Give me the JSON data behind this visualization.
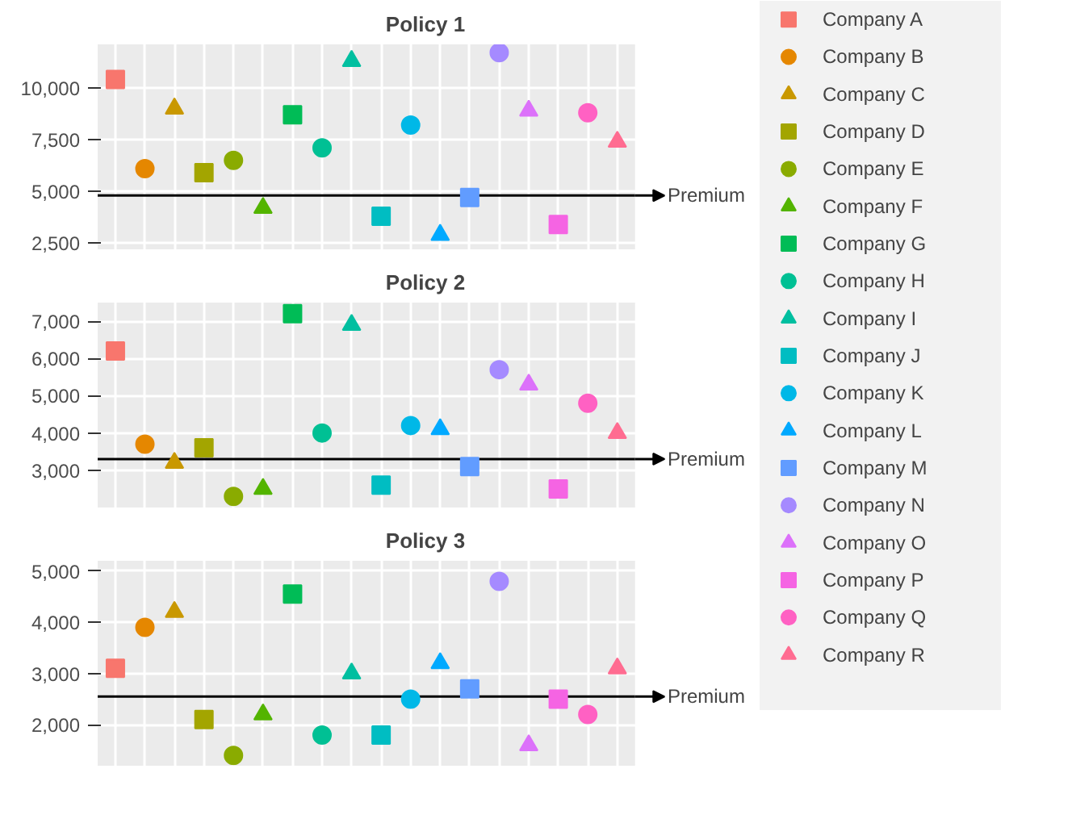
{
  "chart_data": [
    {
      "type": "scatter",
      "title": "Policy 1",
      "categories": [
        null,
        null,
        null,
        null,
        null,
        null,
        null,
        null,
        null,
        null,
        null,
        null,
        null,
        null,
        null,
        null,
        null,
        null
      ],
      "ylim": [
        2200,
        12100
      ],
      "yticks": [
        {
          "value": 2500,
          "label": "2,500"
        },
        {
          "value": 5000,
          "label": "5,000"
        },
        {
          "value": 7500,
          "label": "7,500"
        },
        {
          "value": 10000,
          "label": "10,000"
        }
      ],
      "grid": true,
      "legend": "right",
      "ref_lines": [
        {
          "axis": "y",
          "value": 4800,
          "label": "Premium"
        }
      ],
      "series": [
        {
          "name": "Company A",
          "color": "#F8766D",
          "marker": "square",
          "values": [
            10400,
            null,
            null,
            null,
            null,
            null,
            null,
            null,
            null,
            null,
            null,
            null,
            null,
            null,
            null,
            null,
            null,
            null
          ]
        },
        {
          "name": "Company B",
          "color": "#E58700",
          "marker": "circle",
          "values": [
            null,
            6100,
            null,
            null,
            null,
            null,
            null,
            null,
            null,
            null,
            null,
            null,
            null,
            null,
            null,
            null,
            null,
            null
          ]
        },
        {
          "name": "Company C",
          "color": "#C99800",
          "marker": "triangle",
          "values": [
            null,
            null,
            9000,
            null,
            null,
            null,
            null,
            null,
            null,
            null,
            null,
            null,
            null,
            null,
            null,
            null,
            null,
            null
          ]
        },
        {
          "name": "Company D",
          "color": "#A3A500",
          "marker": "square",
          "values": [
            null,
            null,
            null,
            5900,
            null,
            null,
            null,
            null,
            null,
            null,
            null,
            null,
            null,
            null,
            null,
            null,
            null,
            null
          ]
        },
        {
          "name": "Company E",
          "color": "#8AAB00",
          "marker": "circle",
          "values": [
            null,
            null,
            null,
            null,
            6500,
            null,
            null,
            null,
            null,
            null,
            null,
            null,
            null,
            null,
            null,
            null,
            null,
            null
          ]
        },
        {
          "name": "Company F",
          "color": "#53B400",
          "marker": "triangle",
          "values": [
            null,
            null,
            null,
            null,
            null,
            4200,
            null,
            null,
            null,
            null,
            null,
            null,
            null,
            null,
            null,
            null,
            null,
            null
          ]
        },
        {
          "name": "Company G",
          "color": "#00BC56",
          "marker": "square",
          "values": [
            null,
            null,
            null,
            null,
            null,
            null,
            8700,
            null,
            null,
            null,
            null,
            null,
            null,
            null,
            null,
            null,
            null,
            null
          ]
        },
        {
          "name": "Company H",
          "color": "#00C094",
          "marker": "circle",
          "values": [
            null,
            null,
            null,
            null,
            null,
            null,
            null,
            7100,
            null,
            null,
            null,
            null,
            null,
            null,
            null,
            null,
            null,
            null
          ]
        },
        {
          "name": "Company I",
          "color": "#00BFA0",
          "marker": "triangle",
          "values": [
            null,
            null,
            null,
            null,
            null,
            null,
            null,
            null,
            11300,
            null,
            null,
            null,
            null,
            null,
            null,
            null,
            null,
            null
          ]
        },
        {
          "name": "Company J",
          "color": "#00BDC2",
          "marker": "square",
          "values": [
            null,
            null,
            null,
            null,
            null,
            null,
            null,
            null,
            null,
            3800,
            null,
            null,
            null,
            null,
            null,
            null,
            null,
            null
          ]
        },
        {
          "name": "Company K",
          "color": "#00B8E7",
          "marker": "circle",
          "values": [
            null,
            null,
            null,
            null,
            null,
            null,
            null,
            null,
            null,
            null,
            8200,
            null,
            null,
            null,
            null,
            null,
            null,
            null
          ]
        },
        {
          "name": "Company L",
          "color": "#00A9FF",
          "marker": "triangle",
          "values": [
            null,
            null,
            null,
            null,
            null,
            null,
            null,
            null,
            null,
            null,
            null,
            2900,
            null,
            null,
            null,
            null,
            null,
            null
          ]
        },
        {
          "name": "Company M",
          "color": "#619CFF",
          "marker": "square",
          "values": [
            null,
            null,
            null,
            null,
            null,
            null,
            null,
            null,
            null,
            null,
            null,
            null,
            4700,
            null,
            null,
            null,
            null,
            null
          ]
        },
        {
          "name": "Company N",
          "color": "#A58AFF",
          "marker": "circle",
          "values": [
            null,
            null,
            null,
            null,
            null,
            null,
            null,
            null,
            null,
            null,
            null,
            null,
            null,
            11700,
            null,
            null,
            null,
            null
          ]
        },
        {
          "name": "Company O",
          "color": "#DC71FA",
          "marker": "triangle",
          "values": [
            null,
            null,
            null,
            null,
            null,
            null,
            null,
            null,
            null,
            null,
            null,
            null,
            null,
            null,
            8900,
            null,
            null,
            null
          ]
        },
        {
          "name": "Company P",
          "color": "#F564E3",
          "marker": "square",
          "values": [
            null,
            null,
            null,
            null,
            null,
            null,
            null,
            null,
            null,
            null,
            null,
            null,
            null,
            null,
            null,
            3400,
            null,
            null
          ]
        },
        {
          "name": "Company Q",
          "color": "#FF61C3",
          "marker": "circle",
          "values": [
            null,
            null,
            null,
            null,
            null,
            null,
            null,
            null,
            null,
            null,
            null,
            null,
            null,
            null,
            null,
            null,
            8800,
            null
          ]
        },
        {
          "name": "Company R",
          "color": "#FF6C91",
          "marker": "triangle",
          "values": [
            null,
            null,
            null,
            null,
            null,
            null,
            null,
            null,
            null,
            null,
            null,
            null,
            null,
            null,
            null,
            null,
            null,
            7400
          ]
        }
      ]
    },
    {
      "type": "scatter",
      "title": "Policy 2",
      "categories": [
        null,
        null,
        null,
        null,
        null,
        null,
        null,
        null,
        null,
        null,
        null,
        null,
        null,
        null,
        null,
        null,
        null,
        null
      ],
      "ylim": [
        2000,
        7500
      ],
      "yticks": [
        {
          "value": 3000,
          "label": "3,000"
        },
        {
          "value": 4000,
          "label": "4,000"
        },
        {
          "value": 5000,
          "label": "5,000"
        },
        {
          "value": 6000,
          "label": "6,000"
        },
        {
          "value": 7000,
          "label": "7,000"
        }
      ],
      "grid": true,
      "ref_lines": [
        {
          "axis": "y",
          "value": 3300,
          "label": "Premium"
        }
      ],
      "series": [
        {
          "color": "#F8766D",
          "marker": "square",
          "values": [
            6200,
            null,
            null,
            null,
            null,
            null,
            null,
            null,
            null,
            null,
            null,
            null,
            null,
            null,
            null,
            null,
            null,
            null
          ]
        },
        {
          "color": "#E58700",
          "marker": "circle",
          "values": [
            null,
            3700,
            null,
            null,
            null,
            null,
            null,
            null,
            null,
            null,
            null,
            null,
            null,
            null,
            null,
            null,
            null,
            null
          ]
        },
        {
          "color": "#C99800",
          "marker": "triangle",
          "values": [
            null,
            null,
            3200,
            null,
            null,
            null,
            null,
            null,
            null,
            null,
            null,
            null,
            null,
            null,
            null,
            null,
            null,
            null
          ]
        },
        {
          "color": "#A3A500",
          "marker": "square",
          "values": [
            null,
            null,
            null,
            3600,
            null,
            null,
            null,
            null,
            null,
            null,
            null,
            null,
            null,
            null,
            null,
            null,
            null,
            null
          ]
        },
        {
          "color": "#8AAB00",
          "marker": "circle",
          "values": [
            null,
            null,
            null,
            null,
            2300,
            null,
            null,
            null,
            null,
            null,
            null,
            null,
            null,
            null,
            null,
            null,
            null,
            null
          ]
        },
        {
          "color": "#53B400",
          "marker": "triangle",
          "values": [
            null,
            null,
            null,
            null,
            null,
            2500,
            null,
            null,
            null,
            null,
            null,
            null,
            null,
            null,
            null,
            null,
            null,
            null
          ]
        },
        {
          "color": "#00BC56",
          "marker": "square",
          "values": [
            null,
            null,
            null,
            null,
            null,
            null,
            7200,
            null,
            null,
            null,
            null,
            null,
            null,
            null,
            null,
            null,
            null,
            null
          ]
        },
        {
          "color": "#00C094",
          "marker": "circle",
          "values": [
            null,
            null,
            null,
            null,
            null,
            null,
            null,
            4000,
            null,
            null,
            null,
            null,
            null,
            null,
            null,
            null,
            null,
            null
          ]
        },
        {
          "color": "#00BFA0",
          "marker": "triangle",
          "values": [
            null,
            null,
            null,
            null,
            null,
            null,
            null,
            null,
            6900,
            null,
            null,
            null,
            null,
            null,
            null,
            null,
            null,
            null
          ]
        },
        {
          "color": "#00BDC2",
          "marker": "square",
          "values": [
            null,
            null,
            null,
            null,
            null,
            null,
            null,
            null,
            null,
            2600,
            null,
            null,
            null,
            null,
            null,
            null,
            null,
            null
          ]
        },
        {
          "color": "#00B8E7",
          "marker": "circle",
          "values": [
            null,
            null,
            null,
            null,
            null,
            null,
            null,
            null,
            null,
            null,
            4200,
            null,
            null,
            null,
            null,
            null,
            null,
            null
          ]
        },
        {
          "color": "#00A9FF",
          "marker": "triangle",
          "values": [
            null,
            null,
            null,
            null,
            null,
            null,
            null,
            null,
            null,
            null,
            null,
            4100,
            null,
            null,
            null,
            null,
            null,
            null
          ]
        },
        {
          "color": "#619CFF",
          "marker": "square",
          "values": [
            null,
            null,
            null,
            null,
            null,
            null,
            null,
            null,
            null,
            null,
            null,
            null,
            3100,
            null,
            null,
            null,
            null,
            null
          ]
        },
        {
          "color": "#A58AFF",
          "marker": "circle",
          "values": [
            null,
            null,
            null,
            null,
            null,
            null,
            null,
            null,
            null,
            null,
            null,
            null,
            null,
            5700,
            null,
            null,
            null,
            null
          ]
        },
        {
          "color": "#DC71FA",
          "marker": "triangle",
          "values": [
            null,
            null,
            null,
            null,
            null,
            null,
            null,
            null,
            null,
            null,
            null,
            null,
            null,
            null,
            5300,
            null,
            null,
            null
          ]
        },
        {
          "color": "#F564E3",
          "marker": "square",
          "values": [
            null,
            null,
            null,
            null,
            null,
            null,
            null,
            null,
            null,
            null,
            null,
            null,
            null,
            null,
            null,
            2500,
            null,
            null
          ]
        },
        {
          "color": "#FF61C3",
          "marker": "circle",
          "values": [
            null,
            null,
            null,
            null,
            null,
            null,
            null,
            null,
            null,
            null,
            null,
            null,
            null,
            null,
            null,
            null,
            4800,
            null
          ]
        },
        {
          "color": "#FF6C91",
          "marker": "triangle",
          "values": [
            null,
            null,
            null,
            null,
            null,
            null,
            null,
            null,
            null,
            null,
            null,
            null,
            null,
            null,
            null,
            null,
            null,
            4000
          ]
        }
      ]
    },
    {
      "type": "scatter",
      "title": "Policy 3",
      "categories": [
        null,
        null,
        null,
        null,
        null,
        null,
        null,
        null,
        null,
        null,
        null,
        null,
        null,
        null,
        null,
        null,
        null,
        null
      ],
      "ylim": [
        1200,
        5200
      ],
      "yticks": [
        {
          "value": 2000,
          "label": "2,000"
        },
        {
          "value": 3000,
          "label": "3,000"
        },
        {
          "value": 4000,
          "label": "4,000"
        },
        {
          "value": 5000,
          "label": "5,000"
        }
      ],
      "grid": true,
      "ref_lines": [
        {
          "axis": "y",
          "value": 2550,
          "label": "Premium"
        }
      ],
      "series": [
        {
          "color": "#F8766D",
          "marker": "square",
          "values": [
            3100,
            null,
            null,
            null,
            null,
            null,
            null,
            null,
            null,
            null,
            null,
            null,
            null,
            null,
            null,
            null,
            null,
            null
          ]
        },
        {
          "color": "#E58700",
          "marker": "circle",
          "values": [
            null,
            3900,
            null,
            null,
            null,
            null,
            null,
            null,
            null,
            null,
            null,
            null,
            null,
            null,
            null,
            null,
            null,
            null
          ]
        },
        {
          "color": "#C99800",
          "marker": "triangle",
          "values": [
            null,
            null,
            4200,
            null,
            null,
            null,
            null,
            null,
            null,
            null,
            null,
            null,
            null,
            null,
            null,
            null,
            null,
            null
          ]
        },
        {
          "color": "#A3A500",
          "marker": "square",
          "values": [
            null,
            null,
            null,
            2100,
            null,
            null,
            null,
            null,
            null,
            null,
            null,
            null,
            null,
            null,
            null,
            null,
            null,
            null
          ]
        },
        {
          "color": "#8AAB00",
          "marker": "circle",
          "values": [
            null,
            null,
            null,
            null,
            1400,
            null,
            null,
            null,
            null,
            null,
            null,
            null,
            null,
            null,
            null,
            null,
            null,
            null
          ]
        },
        {
          "color": "#53B400",
          "marker": "triangle",
          "values": [
            null,
            null,
            null,
            null,
            null,
            2200,
            null,
            null,
            null,
            null,
            null,
            null,
            null,
            null,
            null,
            null,
            null,
            null
          ]
        },
        {
          "color": "#00BC56",
          "marker": "square",
          "values": [
            null,
            null,
            null,
            null,
            null,
            null,
            4550,
            null,
            null,
            null,
            null,
            null,
            null,
            null,
            null,
            null,
            null,
            null
          ]
        },
        {
          "color": "#00C094",
          "marker": "circle",
          "values": [
            null,
            null,
            null,
            null,
            null,
            null,
            null,
            1800,
            null,
            null,
            null,
            null,
            null,
            null,
            null,
            null,
            null,
            null
          ]
        },
        {
          "color": "#00BFA0",
          "marker": "triangle",
          "values": [
            null,
            null,
            null,
            null,
            null,
            null,
            null,
            null,
            3000,
            null,
            null,
            null,
            null,
            null,
            null,
            null,
            null,
            null
          ]
        },
        {
          "color": "#00BDC2",
          "marker": "square",
          "values": [
            null,
            null,
            null,
            null,
            null,
            null,
            null,
            null,
            null,
            1800,
            null,
            null,
            null,
            null,
            null,
            null,
            null,
            null
          ]
        },
        {
          "color": "#00B8E7",
          "marker": "circle",
          "values": [
            null,
            null,
            null,
            null,
            null,
            null,
            null,
            null,
            null,
            null,
            2500,
            null,
            null,
            null,
            null,
            null,
            null,
            null
          ]
        },
        {
          "color": "#00A9FF",
          "marker": "triangle",
          "values": [
            null,
            null,
            null,
            null,
            null,
            null,
            null,
            null,
            null,
            null,
            null,
            3200,
            null,
            null,
            null,
            null,
            null,
            null
          ]
        },
        {
          "color": "#619CFF",
          "marker": "square",
          "values": [
            null,
            null,
            null,
            null,
            null,
            null,
            null,
            null,
            null,
            null,
            null,
            null,
            2700,
            null,
            null,
            null,
            null,
            null
          ]
        },
        {
          "color": "#A58AFF",
          "marker": "circle",
          "values": [
            null,
            null,
            null,
            null,
            null,
            null,
            null,
            null,
            null,
            null,
            null,
            null,
            null,
            4800,
            null,
            null,
            null,
            null
          ]
        },
        {
          "color": "#DC71FA",
          "marker": "triangle",
          "values": [
            null,
            null,
            null,
            null,
            null,
            null,
            null,
            null,
            null,
            null,
            null,
            null,
            null,
            null,
            1600,
            null,
            null,
            null
          ]
        },
        {
          "color": "#F564E3",
          "marker": "square",
          "values": [
            null,
            null,
            null,
            null,
            null,
            null,
            null,
            null,
            null,
            null,
            null,
            null,
            null,
            null,
            null,
            2500,
            null,
            null
          ]
        },
        {
          "color": "#FF61C3",
          "marker": "circle",
          "values": [
            null,
            null,
            null,
            null,
            null,
            null,
            null,
            null,
            null,
            null,
            null,
            null,
            null,
            null,
            null,
            null,
            2200,
            null
          ]
        },
        {
          "color": "#FF6C91",
          "marker": "triangle",
          "values": [
            null,
            null,
            null,
            null,
            null,
            null,
            null,
            null,
            null,
            null,
            null,
            null,
            null,
            null,
            null,
            null,
            null,
            3100
          ]
        }
      ]
    }
  ]
}
